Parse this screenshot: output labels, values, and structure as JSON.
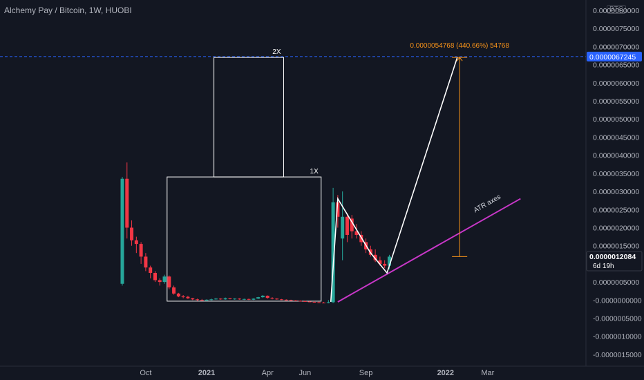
{
  "header": {
    "symbol_title": "Alchemy Pay / Bitcoin, 1W, HUOBI",
    "unit": "BTC"
  },
  "colors": {
    "background": "#131722",
    "up": "#26a69a",
    "down": "#f23645",
    "target": "#f7931a",
    "atr_line": "#c837c8",
    "drawing": "#ffffff",
    "target_line": "#2962ff",
    "last_price_bg": "#131722"
  },
  "chart_data": {
    "type": "candlestick",
    "ylim": [
      -1.6e-06,
      8.2e-06
    ],
    "y_ticks": [
      "-0.0000015000",
      "-0.0000010000",
      "-0.0000005000",
      "-0.0000000000",
      "0.0000005000",
      "0.0000010000",
      "0.0000015000",
      "0.0000020000",
      "0.0000025000",
      "0.0000030000",
      "0.0000035000",
      "0.0000040000",
      "0.0000045000",
      "0.0000050000",
      "0.0000055000",
      "0.0000060000",
      "0.0000065000",
      "0.0000070000",
      "0.0000075000",
      "0.0000080000"
    ],
    "y_tick_values": [
      -1.5e-06,
      -1e-06,
      -5e-07,
      0,
      5e-07,
      1e-06,
      1.5e-06,
      2e-06,
      2.5e-06,
      3e-06,
      3.5e-06,
      4e-06,
      4.5e-06,
      5e-06,
      5.5e-06,
      6e-06,
      6.5e-06,
      7e-06,
      7.5e-06,
      8e-06
    ],
    "x_ticks": [
      {
        "label": "Oct",
        "week": 5,
        "bold": false
      },
      {
        "label": "2021",
        "week": 18,
        "bold": true
      },
      {
        "label": "Apr",
        "week": 31,
        "bold": false
      },
      {
        "label": "Jun",
        "week": 39,
        "bold": false
      },
      {
        "label": "Sep",
        "week": 52,
        "bold": false
      },
      {
        "label": "2022",
        "week": 69,
        "bold": true
      },
      {
        "label": "Mar",
        "week": 78,
        "bold": false
      }
    ],
    "candles": [
      {
        "w": 0,
        "o": 4.5e-07,
        "h": 3.4e-06,
        "l": 4e-07,
        "c": 3.35e-06
      },
      {
        "w": 1,
        "o": 3.35e-06,
        "h": 3.8e-06,
        "l": 1.7e-06,
        "c": 2e-06
      },
      {
        "w": 2,
        "o": 2e-06,
        "h": 2.2e-06,
        "l": 1.5e-06,
        "c": 1.65e-06
      },
      {
        "w": 3,
        "o": 1.65e-06,
        "h": 1.75e-06,
        "l": 1.3e-06,
        "c": 1.55e-06
      },
      {
        "w": 4,
        "o": 1.55e-06,
        "h": 1.6e-06,
        "l": 1e-06,
        "c": 1.2e-06
      },
      {
        "w": 5,
        "o": 1.2e-06,
        "h": 1.3e-06,
        "l": 8e-07,
        "c": 9e-07
      },
      {
        "w": 6,
        "o": 9e-07,
        "h": 9.5e-07,
        "l": 6e-07,
        "c": 7.5e-07
      },
      {
        "w": 7,
        "o": 7.5e-07,
        "h": 8e-07,
        "l": 5e-07,
        "c": 5.5e-07
      },
      {
        "w": 8,
        "o": 5.5e-07,
        "h": 6e-07,
        "l": 4e-07,
        "c": 5e-07
      },
      {
        "w": 9,
        "o": 5e-07,
        "h": 7e-07,
        "l": 4.5e-07,
        "c": 6.5e-07
      },
      {
        "w": 10,
        "o": 6.5e-07,
        "h": 6.8e-07,
        "l": 3e-07,
        "c": 3.5e-07
      },
      {
        "w": 11,
        "o": 3.5e-07,
        "h": 4e-07,
        "l": 1.5e-07,
        "c": 1.8e-07
      },
      {
        "w": 12,
        "o": 1.8e-07,
        "h": 2e-07,
        "l": 8e-08,
        "c": 1e-07
      },
      {
        "w": 13,
        "o": 1e-07,
        "h": 1.4e-07,
        "l": 5e-08,
        "c": 9e-08
      },
      {
        "w": 14,
        "o": 9e-08,
        "h": 1.2e-07,
        "l": 3e-08,
        "c": 5e-08
      },
      {
        "w": 15,
        "o": 5e-08,
        "h": 6e-08,
        "l": 0.0,
        "c": 2e-08
      },
      {
        "w": 16,
        "o": 2e-08,
        "h": 4e-08,
        "l": -2e-08,
        "c": 0.0
      },
      {
        "w": 17,
        "o": 0.0,
        "h": 3e-08,
        "l": -2e-08,
        "c": -1e-08
      },
      {
        "w": 18,
        "o": -1e-08,
        "h": 2e-08,
        "l": -3e-08,
        "c": 1e-08
      },
      {
        "w": 19,
        "o": 1e-08,
        "h": 4e-08,
        "l": -1e-08,
        "c": 2e-08
      },
      {
        "w": 20,
        "o": 2e-08,
        "h": 6e-08,
        "l": 1e-08,
        "c": 4e-08
      },
      {
        "w": 21,
        "o": 4e-08,
        "h": 5e-08,
        "l": 1e-08,
        "c": 2e-08
      },
      {
        "w": 22,
        "o": 2e-08,
        "h": 7e-08,
        "l": 1e-08,
        "c": 5e-08
      },
      {
        "w": 23,
        "o": 5e-08,
        "h": 6e-08,
        "l": 2e-08,
        "c": 3e-08
      },
      {
        "w": 24,
        "o": 3e-08,
        "h": 5e-08,
        "l": 1e-08,
        "c": 4e-08
      },
      {
        "w": 25,
        "o": 4e-08,
        "h": 5e-08,
        "l": 1e-08,
        "c": 2e-08
      },
      {
        "w": 26,
        "o": 2e-08,
        "h": 4e-08,
        "l": 0.0,
        "c": 3e-08
      },
      {
        "w": 27,
        "o": 3e-08,
        "h": 4e-08,
        "l": 0.0,
        "c": 1e-08
      },
      {
        "w": 28,
        "o": 1e-08,
        "h": 5e-08,
        "l": 0.0,
        "c": 4e-08
      },
      {
        "w": 29,
        "o": 4e-08,
        "h": 9e-08,
        "l": 3e-08,
        "c": 8e-08
      },
      {
        "w": 30,
        "o": 8e-08,
        "h": 1.4e-07,
        "l": 6e-08,
        "c": 1.2e-07
      },
      {
        "w": 31,
        "o": 1.2e-07,
        "h": 1.3e-07,
        "l": 4e-08,
        "c": 6e-08
      },
      {
        "w": 32,
        "o": 6e-08,
        "h": 8e-08,
        "l": 2e-08,
        "c": 4e-08
      },
      {
        "w": 33,
        "o": 4e-08,
        "h": 5e-08,
        "l": 1e-08,
        "c": 2e-08
      },
      {
        "w": 34,
        "o": 2e-08,
        "h": 3e-08,
        "l": 0.0,
        "c": 1e-08
      },
      {
        "w": 35,
        "o": 1e-08,
        "h": 2e-08,
        "l": -1e-08,
        "c": 0.0
      },
      {
        "w": 36,
        "o": 0.0,
        "h": 1e-08,
        "l": -2e-08,
        "c": -1e-08
      },
      {
        "w": 37,
        "o": -1e-08,
        "h": 0.0,
        "l": -3e-08,
        "c": -2e-08
      },
      {
        "w": 38,
        "o": -2e-08,
        "h": -1e-08,
        "l": -4e-08,
        "c": -3e-08
      },
      {
        "w": 39,
        "o": -3e-08,
        "h": -2e-08,
        "l": -5e-08,
        "c": -4e-08
      },
      {
        "w": 40,
        "o": -4e-08,
        "h": -3e-08,
        "l": -6e-08,
        "c": -5e-08
      },
      {
        "w": 41,
        "o": -5e-08,
        "h": -3e-08,
        "l": -7e-08,
        "c": -6e-08
      },
      {
        "w": 42,
        "o": -6e-08,
        "h": -4e-08,
        "l": -8e-08,
        "c": -7e-08
      },
      {
        "w": 43,
        "o": -7e-08,
        "h": -5e-08,
        "l": -9e-08,
        "c": -8e-08
      },
      {
        "w": 44,
        "o": -8e-08,
        "h": 0.0,
        "l": -9e-08,
        "c": -6e-08
      },
      {
        "w": 45,
        "o": -6e-08,
        "h": 3.1e-06,
        "l": -8e-08,
        "c": 2.7e-06
      },
      {
        "w": 46,
        "o": 2.7e-06,
        "h": 2.9e-06,
        "l": 2e-06,
        "c": 2.3e-06
      },
      {
        "w": 47,
        "o": 1.7e-06,
        "h": 3e-06,
        "l": 1.1e-06,
        "c": 2.3e-06
      },
      {
        "w": 48,
        "o": 2.3e-06,
        "h": 2.4e-06,
        "l": 1.6e-06,
        "c": 1.8e-06
      },
      {
        "w": 49,
        "o": 2.25e-06,
        "h": 2.35e-06,
        "l": 1.7e-06,
        "c": 1.9e-06
      },
      {
        "w": 50,
        "o": 1.9e-06,
        "h": 2.1e-06,
        "l": 1.7e-06,
        "c": 1.8e-06
      },
      {
        "w": 51,
        "o": 1.8e-06,
        "h": 1.9e-06,
        "l": 1.5e-06,
        "c": 1.6e-06
      },
      {
        "w": 52,
        "o": 1.6e-06,
        "h": 1.7e-06,
        "l": 1.3e-06,
        "c": 1.4e-06
      },
      {
        "w": 53,
        "o": 1.4e-06,
        "h": 1.5e-06,
        "l": 1.2e-06,
        "c": 1.25e-06
      },
      {
        "w": 54,
        "o": 1.25e-06,
        "h": 1.4e-06,
        "l": 1.05e-06,
        "c": 1.1e-06
      },
      {
        "w": 55,
        "o": 1.1e-06,
        "h": 1.2e-06,
        "l": 9.5e-07,
        "c": 1e-06
      },
      {
        "w": 56,
        "o": 1e-06,
        "h": 1.1e-06,
        "l": 8.8e-07,
        "c": 9.5e-07
      },
      {
        "w": 57,
        "o": 9.5e-07,
        "h": 1.25e-06,
        "l": 8.5e-07,
        "c": 1.2e-06
      }
    ],
    "boxes": [
      {
        "label": "1X",
        "w0": 10,
        "w1": 42,
        "y0": -3e-08,
        "y1": 3.4e-06
      },
      {
        "label": "2X",
        "w0": 20,
        "w1": 34,
        "y0": 3.4e-06,
        "y1": 6.7e-06
      }
    ],
    "zigzag": [
      [
        44.5,
        -5e-08
      ],
      [
        46,
        2.8e-06
      ],
      [
        53,
        1.3e-06
      ],
      [
        56.5,
        7.5e-07
      ],
      [
        71.5,
        6.7e-06
      ]
    ],
    "atr_line": {
      "label": "ATR axes",
      "from": [
        46,
        -5e-08
      ],
      "to": [
        85,
        2.8e-06
      ]
    },
    "target": {
      "label": "0.0000054768 (440.66%) 54768",
      "x_week": 72,
      "y_from": 1.2e-06,
      "y_to": 6.7e-06
    },
    "target_price": {
      "value": 6.7245e-06,
      "label": "0.0000067245"
    },
    "last_price": {
      "value": 1.2084e-06,
      "label": "0.0000012084",
      "countdown": "6d 19h"
    }
  }
}
